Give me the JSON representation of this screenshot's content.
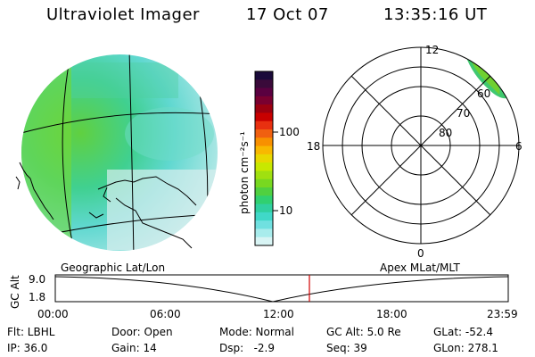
{
  "header": {
    "title": "Ultraviolet Imager",
    "date": "17 Oct 07",
    "time": "13:35:16 UT"
  },
  "colorbar": {
    "axis_label": "photon cm⁻²s⁻¹",
    "tick_high": "100",
    "tick_low": "10",
    "colors": [
      "#1a0a3a",
      "#3a0a3a",
      "#5a0040",
      "#7a0030",
      "#9c0010",
      "#c80000",
      "#e83010",
      "#f06010",
      "#f89000",
      "#f8b800",
      "#e8d800",
      "#c8e800",
      "#a0e010",
      "#78d820",
      "#50d040",
      "#30d070",
      "#30d0a0",
      "#40d8c8",
      "#70e0e0",
      "#a8ecec",
      "#d8f4f4"
    ]
  },
  "polar": {
    "labels": {
      "top": "12",
      "bottom": "0",
      "left": "18",
      "right": "6"
    },
    "lat_labels": [
      "60",
      "70",
      "80"
    ]
  },
  "timeline": {
    "y_axis_label": "GC Alt",
    "y_ticks": [
      "9.0",
      "1.8"
    ],
    "left_title": "Geographic Lat/Lon",
    "right_title": "Apex MLat/MLT",
    "x_ticks": [
      "00:00",
      "06:00",
      "12:00",
      "18:00",
      "23:59"
    ],
    "marker_color": "#d00000"
  },
  "footer": {
    "row1": {
      "flt": "Flt: LBHL",
      "door": "Door: Open",
      "mode": "Mode: Normal",
      "gcalt": "GC Alt: 5.0 Re",
      "glat": "GLat: -52.4"
    },
    "row2": {
      "ip": "IP: 36.0",
      "gain": "Gain: 14",
      "dsp": "Dsp:   -2.9",
      "seq": "Seq: 39",
      "glon": "GLon: 278.1"
    }
  }
}
